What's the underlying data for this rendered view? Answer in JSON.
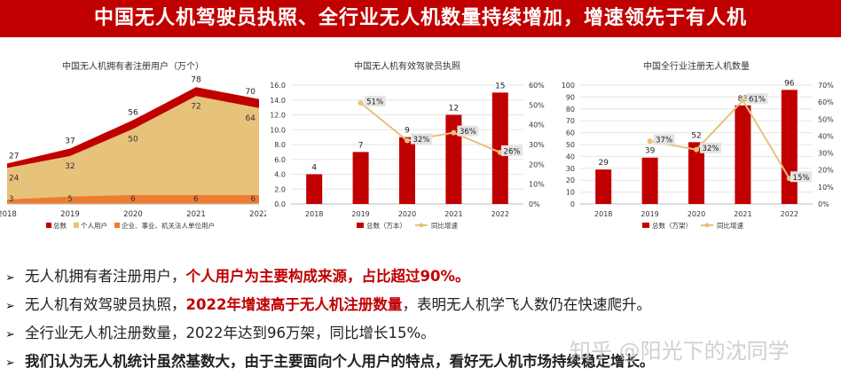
{
  "header": {
    "title": "中国无人机驾驶员执照、全行业无人机数量持续增加，增速领先于有人机"
  },
  "charts": {
    "c1_title": "中国无人机拥有者注册用户（万个）",
    "c1_legend": [
      "总数",
      "个人用户",
      "企业、事业、机关法人单位用户"
    ],
    "c2_title": "中国无人机有效驾驶员执照",
    "c2_legend": [
      "总数（万本）",
      "同比增速"
    ],
    "c3_title": "中国全行业注册无人机数量",
    "c3_legend": [
      "总数（万架）",
      "同比增速"
    ]
  },
  "chart_data": [
    {
      "type": "area",
      "title": "中国无人机拥有者注册用户（万个）",
      "categories": [
        "2018",
        "2019",
        "2020",
        "2021",
        "2022"
      ],
      "series": [
        {
          "name": "总数",
          "values": [
            27,
            37,
            56,
            78,
            70
          ]
        },
        {
          "name": "个人用户",
          "values": [
            24,
            32,
            50,
            72,
            64
          ]
        },
        {
          "name": "企业、事业、机关法人单位用户",
          "values": [
            3,
            5,
            6,
            6,
            6
          ]
        }
      ],
      "colors": [
        "#c00000",
        "#e6c27a",
        "#ed7d31"
      ],
      "ylim": [
        0,
        90
      ],
      "legend": "bottom"
    },
    {
      "type": "bar",
      "title": "中国无人机有效驾驶员执照",
      "categories": [
        "2018",
        "2019",
        "2020",
        "2021",
        "2022"
      ],
      "series": [
        {
          "name": "总数（万本）",
          "type": "bar",
          "values": [
            4,
            7,
            9,
            12,
            15
          ]
        },
        {
          "name": "同比增速",
          "type": "line",
          "axis": "right",
          "values": [
            null,
            51,
            32,
            36,
            26
          ]
        }
      ],
      "y_ticks": [
        "0.0",
        "2.0",
        "4.0",
        "6.0",
        "8.0",
        "10.0",
        "12.0",
        "14.0",
        "16.0"
      ],
      "y2_ticks": [
        "0%",
        "10%",
        "20%",
        "30%",
        "40%",
        "50%",
        "60%"
      ],
      "ylim": [
        0,
        16
      ],
      "y2lim": [
        0,
        60
      ],
      "colors": [
        "#c00000",
        "#e6c27a"
      ],
      "grid": true,
      "legend": "bottom"
    },
    {
      "type": "bar",
      "title": "中国全行业注册无人机数量",
      "categories": [
        "2018",
        "2019",
        "2020",
        "2021",
        "2022"
      ],
      "series": [
        {
          "name": "总数（万架）",
          "type": "bar",
          "values": [
            29,
            39,
            52,
            83,
            96
          ]
        },
        {
          "name": "同比增速",
          "type": "line",
          "axis": "right",
          "values": [
            null,
            37,
            32,
            61,
            15
          ]
        }
      ],
      "y_ticks": [
        "0",
        "10",
        "20",
        "30",
        "40",
        "50",
        "60",
        "70",
        "80",
        "90",
        "100"
      ],
      "y2_ticks": [
        "0%",
        "10%",
        "20%",
        "30%",
        "40%",
        "50%",
        "60%",
        "70%"
      ],
      "ylim": [
        0,
        100
      ],
      "y2lim": [
        0,
        70
      ],
      "colors": [
        "#c00000",
        "#e6c27a"
      ],
      "grid": true,
      "legend": "bottom"
    }
  ],
  "bullets": [
    {
      "parts": [
        {
          "t": "无人机拥有者注册用户，"
        },
        {
          "t": "个人用户为主要构成来源，占比超过90%。",
          "hl": true
        }
      ]
    },
    {
      "parts": [
        {
          "t": "无人机有效驾驶员执照，"
        },
        {
          "t": "2022年增速高于无人机注册数量",
          "hl": true
        },
        {
          "t": "，表明无人机学飞人数仍在快速爬升。"
        }
      ]
    },
    {
      "parts": [
        {
          "t": "全行业无人机注册数量，2022年达到96万架，同比增长15%。"
        }
      ]
    },
    {
      "strong": true,
      "parts": [
        {
          "t": "我们认为无人机统计虽然基数大，由于主要面向个人用户的特点，看好无人机市场持续稳定增长。"
        }
      ]
    }
  ],
  "bullet_marker": "➢",
  "watermark": "知乎 @阳光下的沈同学"
}
